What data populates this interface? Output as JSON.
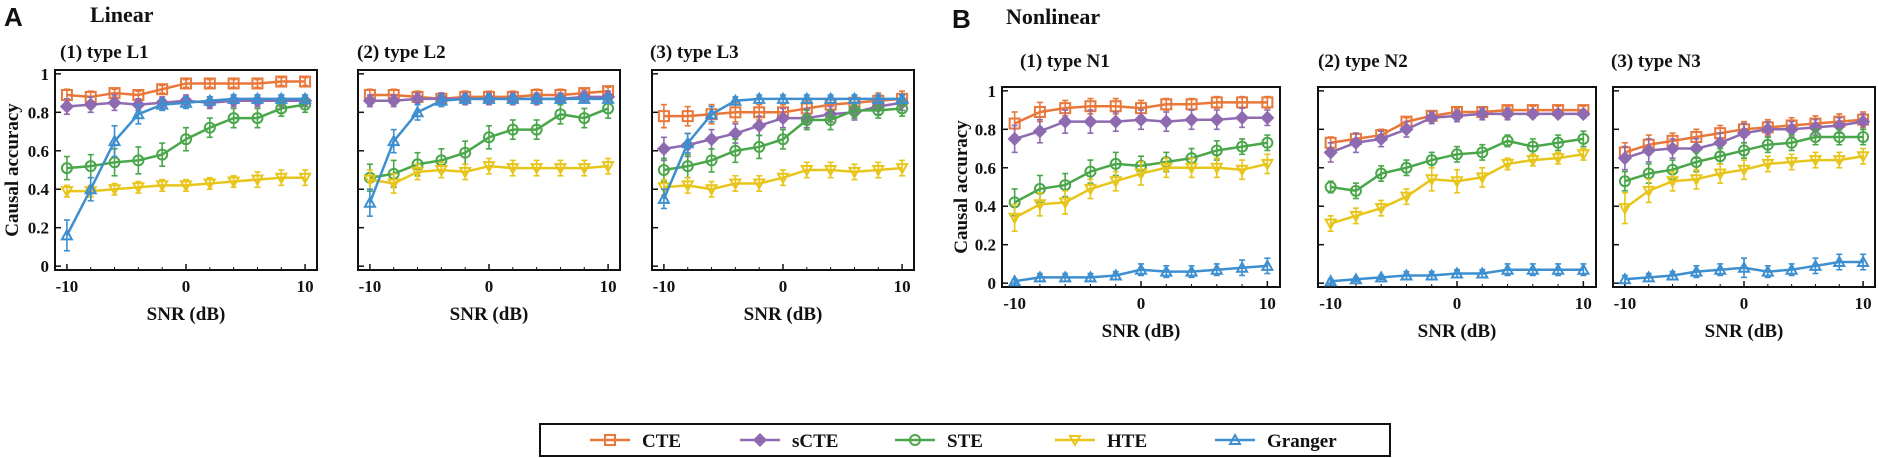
{
  "panels_header": {
    "A": {
      "letter": "A",
      "title": "Linear"
    },
    "B": {
      "letter": "B",
      "title": "Nonlinear"
    }
  },
  "colors": {
    "CTE": "#e8773a",
    "sCTE": "#8e6bb0",
    "STE": "#4aa64a",
    "HTE": "#e8c51a",
    "Granger": "#3d8fcf"
  },
  "legend": [
    "CTE",
    "sCTE",
    "STE",
    "HTE",
    "Granger"
  ],
  "chart_data": [
    {
      "type": "line",
      "title": "(1) type L1",
      "xlabel": "SNR (dB)",
      "ylabel": "Causal accuracy",
      "x": [
        -10,
        -8,
        -6,
        -4,
        -2,
        0,
        2,
        4,
        6,
        8,
        10
      ],
      "xticks": [
        "-10",
        "0",
        "10"
      ],
      "yticks": [
        "0",
        "0.2",
        "0.4",
        "0.6",
        "0.8",
        "1"
      ],
      "xlim": [
        -11,
        11
      ],
      "ylim": [
        -0.02,
        1.02
      ],
      "series": [
        {
          "name": "CTE",
          "values": [
            0.89,
            0.88,
            0.9,
            0.89,
            0.92,
            0.95,
            0.95,
            0.95,
            0.95,
            0.96,
            0.96
          ],
          "err": [
            0.03,
            0.03,
            0.02,
            0.02,
            0.02,
            0.02,
            0.02,
            0.02,
            0.02,
            0.02,
            0.02
          ]
        },
        {
          "name": "sCTE",
          "values": [
            0.83,
            0.84,
            0.85,
            0.84,
            0.85,
            0.86,
            0.85,
            0.86,
            0.86,
            0.86,
            0.86
          ],
          "err": [
            0.04,
            0.04,
            0.04,
            0.03,
            0.03,
            0.03,
            0.03,
            0.03,
            0.03,
            0.03,
            0.03
          ]
        },
        {
          "name": "STE",
          "values": [
            0.51,
            0.52,
            0.54,
            0.55,
            0.58,
            0.66,
            0.72,
            0.77,
            0.77,
            0.82,
            0.84
          ],
          "err": [
            0.06,
            0.06,
            0.07,
            0.07,
            0.06,
            0.06,
            0.05,
            0.05,
            0.05,
            0.04,
            0.04
          ]
        },
        {
          "name": "HTE",
          "values": [
            0.39,
            0.39,
            0.4,
            0.41,
            0.42,
            0.42,
            0.43,
            0.44,
            0.45,
            0.46,
            0.46
          ],
          "err": [
            0.03,
            0.03,
            0.03,
            0.03,
            0.03,
            0.03,
            0.03,
            0.03,
            0.04,
            0.04,
            0.04
          ]
        },
        {
          "name": "Granger",
          "values": [
            0.16,
            0.4,
            0.65,
            0.79,
            0.84,
            0.85,
            0.86,
            0.87,
            0.87,
            0.87,
            0.87
          ],
          "err": [
            0.08,
            0.06,
            0.08,
            0.05,
            0.03,
            0.03,
            0.02,
            0.02,
            0.02,
            0.02,
            0.02
          ]
        }
      ]
    },
    {
      "type": "line",
      "title": "(2) type L2",
      "xlabel": "SNR (dB)",
      "ylabel": "",
      "x": [
        -10,
        -8,
        -6,
        -4,
        -2,
        0,
        2,
        4,
        6,
        8,
        10
      ],
      "xticks": [
        "-10",
        "0",
        "10"
      ],
      "yticks": [],
      "xlim": [
        -11,
        11
      ],
      "ylim": [
        -0.02,
        1.02
      ],
      "series": [
        {
          "name": "CTE",
          "values": [
            0.89,
            0.89,
            0.88,
            0.87,
            0.88,
            0.88,
            0.88,
            0.89,
            0.89,
            0.9,
            0.91
          ],
          "err": [
            0.03,
            0.03,
            0.03,
            0.03,
            0.03,
            0.03,
            0.03,
            0.03,
            0.03,
            0.02,
            0.02
          ]
        },
        {
          "name": "sCTE",
          "values": [
            0.86,
            0.86,
            0.87,
            0.87,
            0.87,
            0.87,
            0.87,
            0.87,
            0.87,
            0.88,
            0.88
          ],
          "err": [
            0.03,
            0.03,
            0.03,
            0.03,
            0.03,
            0.03,
            0.03,
            0.03,
            0.03,
            0.03,
            0.03
          ]
        },
        {
          "name": "STE",
          "values": [
            0.46,
            0.48,
            0.53,
            0.55,
            0.59,
            0.67,
            0.71,
            0.71,
            0.79,
            0.77,
            0.82
          ],
          "err": [
            0.07,
            0.07,
            0.06,
            0.06,
            0.06,
            0.06,
            0.05,
            0.05,
            0.05,
            0.05,
            0.05
          ]
        },
        {
          "name": "HTE",
          "values": [
            0.45,
            0.43,
            0.49,
            0.5,
            0.49,
            0.52,
            0.51,
            0.51,
            0.51,
            0.51,
            0.52
          ],
          "err": [
            0.05,
            0.05,
            0.04,
            0.04,
            0.04,
            0.04,
            0.04,
            0.04,
            0.04,
            0.04,
            0.04
          ]
        },
        {
          "name": "Granger",
          "values": [
            0.33,
            0.65,
            0.8,
            0.86,
            0.87,
            0.87,
            0.87,
            0.87,
            0.87,
            0.87,
            0.87
          ],
          "err": [
            0.07,
            0.06,
            0.04,
            0.03,
            0.02,
            0.02,
            0.02,
            0.02,
            0.02,
            0.02,
            0.02
          ]
        }
      ]
    },
    {
      "type": "line",
      "title": "(3) type L3",
      "xlabel": "SNR (dB)",
      "ylabel": "",
      "x": [
        -10,
        -8,
        -6,
        -4,
        -2,
        0,
        2,
        4,
        6,
        8,
        10
      ],
      "xticks": [
        "-10",
        "0",
        "10"
      ],
      "yticks": [],
      "xlim": [
        -11,
        11
      ],
      "ylim": [
        -0.02,
        1.02
      ],
      "series": [
        {
          "name": "CTE",
          "values": [
            0.78,
            0.78,
            0.79,
            0.8,
            0.8,
            0.8,
            0.82,
            0.84,
            0.85,
            0.86,
            0.87
          ],
          "err": [
            0.06,
            0.05,
            0.05,
            0.05,
            0.04,
            0.04,
            0.04,
            0.04,
            0.04,
            0.04,
            0.04
          ]
        },
        {
          "name": "sCTE",
          "values": [
            0.61,
            0.63,
            0.66,
            0.69,
            0.73,
            0.77,
            0.77,
            0.79,
            0.8,
            0.83,
            0.85
          ],
          "err": [
            0.06,
            0.06,
            0.05,
            0.05,
            0.05,
            0.05,
            0.05,
            0.04,
            0.04,
            0.04,
            0.04
          ]
        },
        {
          "name": "STE",
          "values": [
            0.5,
            0.52,
            0.55,
            0.6,
            0.62,
            0.66,
            0.76,
            0.76,
            0.81,
            0.81,
            0.82
          ],
          "err": [
            0.06,
            0.06,
            0.06,
            0.06,
            0.06,
            0.05,
            0.05,
            0.05,
            0.04,
            0.04,
            0.04
          ]
        },
        {
          "name": "HTE",
          "values": [
            0.41,
            0.42,
            0.4,
            0.43,
            0.43,
            0.46,
            0.5,
            0.5,
            0.49,
            0.5,
            0.51
          ],
          "err": [
            0.04,
            0.04,
            0.04,
            0.04,
            0.04,
            0.04,
            0.04,
            0.04,
            0.04,
            0.04,
            0.04
          ]
        },
        {
          "name": "Granger",
          "values": [
            0.35,
            0.64,
            0.79,
            0.86,
            0.87,
            0.87,
            0.87,
            0.87,
            0.87,
            0.87,
            0.87
          ],
          "err": [
            0.05,
            0.05,
            0.04,
            0.02,
            0.02,
            0.02,
            0.02,
            0.02,
            0.02,
            0.02,
            0.02
          ]
        }
      ]
    },
    {
      "type": "line",
      "title": "(1) type N1",
      "xlabel": "SNR (dB)",
      "ylabel": "Causal accuracy",
      "x": [
        -10,
        -8,
        -6,
        -4,
        -2,
        0,
        2,
        4,
        6,
        8,
        10
      ],
      "xticks": [
        "-10",
        "0",
        "10"
      ],
      "yticks": [
        "0",
        "0.2",
        "0.4",
        "0.6",
        "0.8",
        "1"
      ],
      "xlim": [
        -11,
        11
      ],
      "ylim": [
        -0.02,
        1.02
      ],
      "series": [
        {
          "name": "CTE",
          "values": [
            0.83,
            0.89,
            0.91,
            0.92,
            0.92,
            0.91,
            0.93,
            0.93,
            0.94,
            0.94,
            0.94
          ],
          "err": [
            0.06,
            0.05,
            0.04,
            0.04,
            0.04,
            0.04,
            0.03,
            0.03,
            0.03,
            0.03,
            0.03
          ]
        },
        {
          "name": "sCTE",
          "values": [
            0.75,
            0.79,
            0.84,
            0.84,
            0.84,
            0.85,
            0.84,
            0.85,
            0.85,
            0.86,
            0.86
          ],
          "err": [
            0.07,
            0.06,
            0.06,
            0.06,
            0.05,
            0.05,
            0.05,
            0.05,
            0.05,
            0.05,
            0.04
          ]
        },
        {
          "name": "STE",
          "values": [
            0.42,
            0.49,
            0.51,
            0.58,
            0.62,
            0.61,
            0.63,
            0.65,
            0.69,
            0.71,
            0.73
          ],
          "err": [
            0.07,
            0.07,
            0.06,
            0.06,
            0.06,
            0.05,
            0.05,
            0.05,
            0.05,
            0.04,
            0.04
          ]
        },
        {
          "name": "HTE",
          "values": [
            0.34,
            0.41,
            0.42,
            0.49,
            0.53,
            0.57,
            0.6,
            0.6,
            0.6,
            0.59,
            0.62
          ],
          "err": [
            0.07,
            0.06,
            0.06,
            0.05,
            0.05,
            0.06,
            0.05,
            0.05,
            0.05,
            0.05,
            0.05
          ]
        },
        {
          "name": "Granger",
          "values": [
            0.01,
            0.03,
            0.03,
            0.03,
            0.04,
            0.07,
            0.06,
            0.06,
            0.07,
            0.08,
            0.09
          ],
          "err": [
            0.01,
            0.02,
            0.02,
            0.02,
            0.02,
            0.03,
            0.03,
            0.03,
            0.03,
            0.04,
            0.04
          ]
        }
      ]
    },
    {
      "type": "line",
      "title": "(2) type N2",
      "xlabel": "SNR (dB)",
      "ylabel": "",
      "x": [
        -10,
        -8,
        -6,
        -4,
        -2,
        0,
        2,
        4,
        6,
        8,
        10
      ],
      "xticks": [
        "-10",
        "0",
        "10"
      ],
      "yticks": [],
      "xlim": [
        -11,
        11
      ],
      "ylim": [
        -0.02,
        1.02
      ],
      "series": [
        {
          "name": "CTE",
          "values": [
            0.73,
            0.75,
            0.77,
            0.84,
            0.87,
            0.89,
            0.89,
            0.9,
            0.9,
            0.9,
            0.9
          ],
          "err": [
            0.03,
            0.03,
            0.03,
            0.02,
            0.02,
            0.02,
            0.02,
            0.02,
            0.02,
            0.02,
            0.02
          ]
        },
        {
          "name": "sCTE",
          "values": [
            0.68,
            0.73,
            0.75,
            0.8,
            0.86,
            0.87,
            0.88,
            0.88,
            0.88,
            0.88,
            0.88
          ],
          "err": [
            0.05,
            0.05,
            0.04,
            0.04,
            0.03,
            0.03,
            0.03,
            0.03,
            0.02,
            0.02,
            0.02
          ]
        },
        {
          "name": "STE",
          "values": [
            0.5,
            0.48,
            0.57,
            0.6,
            0.64,
            0.67,
            0.68,
            0.74,
            0.71,
            0.73,
            0.75
          ],
          "err": [
            0.03,
            0.04,
            0.04,
            0.04,
            0.04,
            0.04,
            0.04,
            0.03,
            0.04,
            0.04,
            0.04
          ]
        },
        {
          "name": "HTE",
          "values": [
            0.31,
            0.35,
            0.39,
            0.45,
            0.54,
            0.53,
            0.55,
            0.62,
            0.64,
            0.65,
            0.67
          ],
          "err": [
            0.04,
            0.04,
            0.04,
            0.04,
            0.06,
            0.06,
            0.05,
            0.03,
            0.03,
            0.03,
            0.03
          ]
        },
        {
          "name": "Granger",
          "values": [
            0.01,
            0.02,
            0.03,
            0.04,
            0.04,
            0.05,
            0.05,
            0.07,
            0.07,
            0.07,
            0.07
          ],
          "err": [
            0.01,
            0.01,
            0.01,
            0.02,
            0.02,
            0.02,
            0.02,
            0.03,
            0.03,
            0.03,
            0.03
          ]
        }
      ]
    },
    {
      "type": "line",
      "title": "(3) type N3",
      "xlabel": "SNR (dB)",
      "ylabel": "",
      "x": [
        -10,
        -8,
        -6,
        -4,
        -2,
        0,
        2,
        4,
        6,
        8,
        10
      ],
      "xticks": [
        "-10",
        "0",
        "10"
      ],
      "yticks": [],
      "xlim": [
        -11,
        11
      ],
      "ylim": [
        -0.02,
        1.02
      ],
      "series": [
        {
          "name": "CTE",
          "values": [
            0.68,
            0.72,
            0.74,
            0.76,
            0.78,
            0.8,
            0.81,
            0.82,
            0.83,
            0.84,
            0.85
          ],
          "err": [
            0.05,
            0.05,
            0.04,
            0.04,
            0.04,
            0.04,
            0.04,
            0.04,
            0.04,
            0.04,
            0.04
          ]
        },
        {
          "name": "sCTE",
          "values": [
            0.65,
            0.69,
            0.7,
            0.7,
            0.73,
            0.78,
            0.8,
            0.8,
            0.81,
            0.82,
            0.84
          ],
          "err": [
            0.06,
            0.06,
            0.05,
            0.05,
            0.05,
            0.05,
            0.04,
            0.04,
            0.04,
            0.04,
            0.04
          ]
        },
        {
          "name": "STE",
          "values": [
            0.53,
            0.57,
            0.59,
            0.63,
            0.66,
            0.69,
            0.72,
            0.73,
            0.76,
            0.76,
            0.76
          ],
          "err": [
            0.05,
            0.05,
            0.05,
            0.05,
            0.04,
            0.04,
            0.04,
            0.04,
            0.04,
            0.04,
            0.04
          ]
        },
        {
          "name": "HTE",
          "values": [
            0.39,
            0.48,
            0.53,
            0.54,
            0.57,
            0.59,
            0.62,
            0.63,
            0.64,
            0.64,
            0.66
          ],
          "err": [
            0.08,
            0.06,
            0.05,
            0.05,
            0.05,
            0.05,
            0.04,
            0.04,
            0.04,
            0.04,
            0.04
          ]
        },
        {
          "name": "Granger",
          "values": [
            0.02,
            0.03,
            0.04,
            0.06,
            0.07,
            0.08,
            0.06,
            0.07,
            0.09,
            0.11,
            0.11
          ],
          "err": [
            0.02,
            0.02,
            0.02,
            0.03,
            0.03,
            0.05,
            0.03,
            0.03,
            0.04,
            0.04,
            0.04
          ]
        }
      ]
    }
  ]
}
